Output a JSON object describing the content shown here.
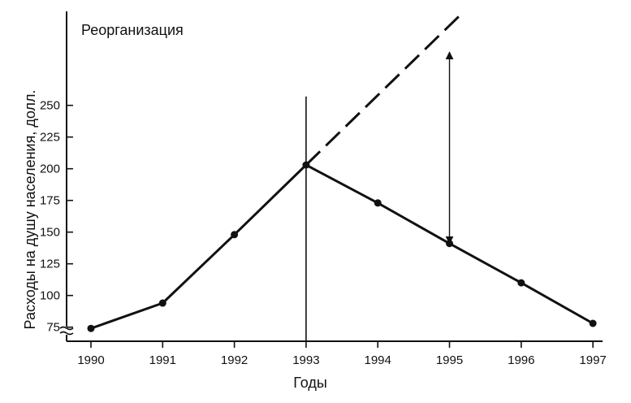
{
  "chart_data": {
    "type": "line",
    "title": "",
    "annotation": "Реорганизация",
    "xlabel": "Годы",
    "ylabel": "Расходы на душу населения, долл.",
    "x": [
      1990,
      1991,
      1992,
      1993,
      1994,
      1995,
      1996,
      1997
    ],
    "x_tick_labels": [
      "1990",
      "1991",
      "1992",
      "1993",
      "1994",
      "1995",
      "1996",
      "1997"
    ],
    "y_ticks": [
      75,
      100,
      125,
      150,
      175,
      200,
      225,
      250
    ],
    "y_tick_labels": [
      "75",
      "100",
      "125",
      "150",
      "175",
      "200",
      "225",
      "250"
    ],
    "ylim": [
      60,
      320
    ],
    "xlim": [
      1989.9,
      1997
    ],
    "axis_break": true,
    "grid": false,
    "series": [
      {
        "style": "solid",
        "markers": true,
        "x": [
          1990,
          1991,
          1992,
          1993,
          1994,
          1995,
          1996,
          1997
        ],
        "y": [
          74,
          94,
          148,
          203,
          173,
          141,
          110,
          78
        ]
      },
      {
        "style": "dashed",
        "markers": false,
        "x": [
          1993,
          1995.2
        ],
        "y": [
          203,
          324
        ]
      }
    ],
    "reference_line": {
      "x": 1993,
      "y_from": 60,
      "y_to": 257
    },
    "gap_arrow": {
      "x": 1995,
      "y_top": 292,
      "y_bottom": 141
    }
  }
}
